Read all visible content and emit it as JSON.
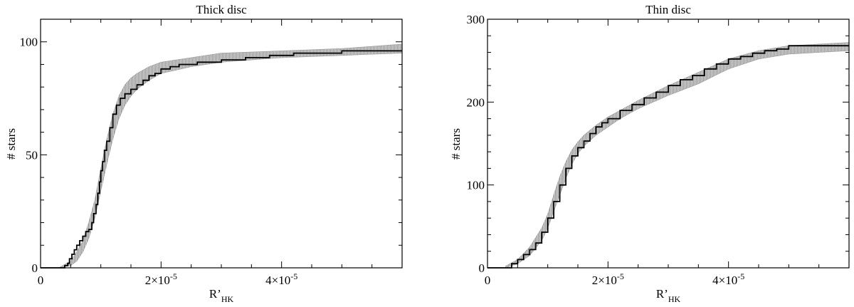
{
  "chart_data": [
    {
      "type": "line",
      "title": "Thick disc",
      "xlabel_main": "R’",
      "xlabel_sub": "HK",
      "ylabel": "# stars",
      "xlim": [
        0,
        6e-05
      ],
      "ylim": [
        0,
        110
      ],
      "x_ticks": [
        {
          "value": 0,
          "label": "0"
        },
        {
          "value": 2e-05,
          "label": "2×10",
          "exp": "-5"
        },
        {
          "value": 4e-05,
          "label": "4×10",
          "exp": "-5"
        }
      ],
      "y_ticks": [
        {
          "value": 0,
          "label": "0"
        },
        {
          "value": 50,
          "label": "50"
        },
        {
          "value": 100,
          "label": "100"
        }
      ],
      "observed": {
        "x": [
          3.5e-06,
          4e-06,
          4.5e-06,
          4.8e-06,
          5.2e-06,
          5.6e-06,
          6e-06,
          6.5e-06,
          7e-06,
          7.5e-06,
          8e-06,
          8.5e-06,
          8.8e-06,
          9.2e-06,
          9.5e-06,
          9.8e-06,
          1e-05,
          1.03e-05,
          1.06e-05,
          1.1e-05,
          1.15e-05,
          1.2e-05,
          1.26e-05,
          1.32e-05,
          1.4e-05,
          1.5e-05,
          1.6e-05,
          1.7e-05,
          1.8e-05,
          1.9e-05,
          2e-05,
          2.15e-05,
          2.3e-05,
          2.6e-05,
          3e-05,
          3.4e-05,
          3.8e-05,
          4.2e-05,
          5e-05,
          6e-05
        ],
        "y": [
          0,
          1,
          2,
          4,
          6,
          8,
          10,
          12,
          14,
          16,
          17,
          20,
          24,
          28,
          33,
          38,
          43,
          47,
          52,
          56,
          62,
          68,
          72,
          75,
          77,
          79,
          81,
          83,
          85,
          86,
          88,
          89,
          90,
          91,
          92,
          93,
          94,
          95,
          96,
          96
        ]
      },
      "envelope": {
        "x": [
          3e-06,
          5e-06,
          6e-06,
          7e-06,
          8e-06,
          9e-06,
          1e-05,
          1.1e-05,
          1.2e-05,
          1.3e-05,
          1.4e-05,
          1.5e-05,
          1.6e-05,
          1.8e-05,
          2e-05,
          2.5e-05,
          3e-05,
          4e-05,
          5e-05,
          6e-05
        ],
        "low": [
          0,
          1,
          3,
          7,
          13,
          22,
          34,
          46,
          57,
          66,
          72,
          76,
          79,
          83,
          86,
          89,
          91,
          93,
          94,
          95
        ],
        "high": [
          0,
          3,
          7,
          12,
          20,
          30,
          44,
          57,
          68,
          76,
          81,
          84,
          86,
          89,
          91,
          93,
          95,
          96,
          97,
          99
        ]
      }
    },
    {
      "type": "line",
      "title": "Thin disc",
      "xlabel_main": "R’",
      "xlabel_sub": "HK",
      "ylabel": "# stars",
      "xlim": [
        0,
        6e-05
      ],
      "ylim": [
        0,
        300
      ],
      "x_ticks": [
        {
          "value": 0,
          "label": "0"
        },
        {
          "value": 2e-05,
          "label": "2×10",
          "exp": "-5"
        },
        {
          "value": 4e-05,
          "label": "4×10",
          "exp": "-5"
        }
      ],
      "y_ticks": [
        {
          "value": 0,
          "label": "0"
        },
        {
          "value": 100,
          "label": "100"
        },
        {
          "value": 200,
          "label": "200"
        },
        {
          "value": 300,
          "label": "300"
        }
      ],
      "observed": {
        "x": [
          3e-06,
          4e-06,
          5e-06,
          6e-06,
          7e-06,
          8e-06,
          9e-06,
          1e-05,
          1.1e-05,
          1.2e-05,
          1.3e-05,
          1.4e-05,
          1.5e-05,
          1.6e-05,
          1.7e-05,
          1.8e-05,
          1.9e-05,
          2e-05,
          2.2e-05,
          2.4e-05,
          2.6e-05,
          2.8e-05,
          3e-05,
          3.2e-05,
          3.4e-05,
          3.6e-05,
          3.8e-05,
          4e-05,
          4.2e-05,
          4.4e-05,
          4.6e-05,
          4.8e-05,
          5e-05,
          5.5e-05,
          6e-05
        ],
        "y": [
          0,
          5,
          10,
          16,
          22,
          30,
          43,
          60,
          80,
          100,
          120,
          135,
          145,
          153,
          162,
          170,
          175,
          180,
          190,
          197,
          205,
          212,
          220,
          227,
          232,
          240,
          246,
          252,
          255,
          259,
          262,
          264,
          268,
          268,
          268
        ]
      },
      "envelope": {
        "x": [
          3e-06,
          5e-06,
          7e-06,
          9e-06,
          1e-05,
          1.1e-05,
          1.2e-05,
          1.3e-05,
          1.4e-05,
          1.5e-05,
          1.6e-05,
          1.8e-05,
          2e-05,
          2.2e-05,
          2.5e-05,
          3e-05,
          3.5e-05,
          4e-05,
          4.5e-05,
          5e-05,
          6e-05
        ],
        "low": [
          0,
          5,
          15,
          33,
          48,
          68,
          88,
          108,
          125,
          138,
          147,
          160,
          170,
          180,
          192,
          208,
          222,
          240,
          252,
          258,
          262
        ],
        "high": [
          2,
          10,
          25,
          48,
          65,
          88,
          110,
          128,
          142,
          152,
          160,
          172,
          182,
          190,
          202,
          220,
          236,
          252,
          262,
          268,
          272
        ]
      }
    }
  ]
}
